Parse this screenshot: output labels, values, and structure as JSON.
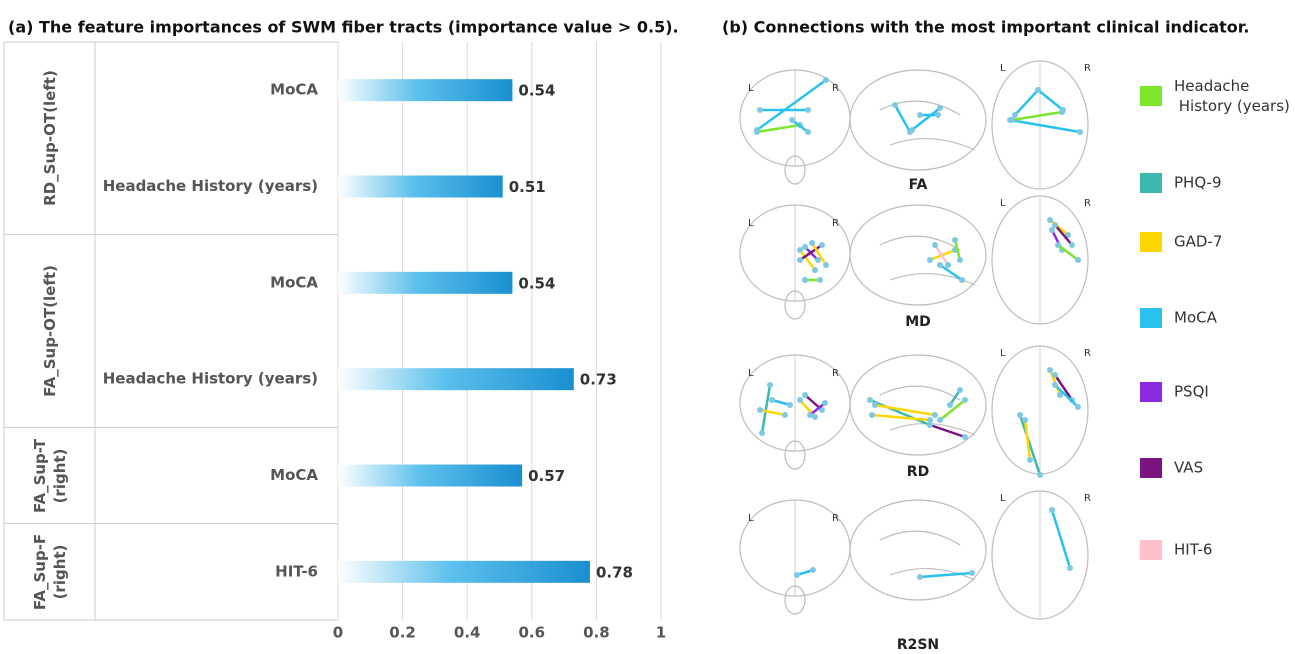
{
  "chart_data": {
    "type": "hbar",
    "title": "(a)  The feature importances of SWM fiber tracts (importance value > 0.5).",
    "groups": [
      {
        "name": "RD_Sup-OT(left)",
        "categories": [
          "MoCA",
          "Headache History (years)"
        ],
        "values": [
          0.54,
          0.51
        ]
      },
      {
        "name": "FA_Sup-OT(left)",
        "categories": [
          "MoCA",
          "Headache History (years)"
        ],
        "values": [
          0.54,
          0.73
        ]
      },
      {
        "name": "FA_Sup-T(right)",
        "categories": [
          "MoCA"
        ],
        "values": [
          0.57
        ]
      },
      {
        "name": "FA_Sup-F(right)",
        "categories": [
          "HIT-6"
        ],
        "values": [
          0.78
        ]
      }
    ],
    "color": "#1a8fd0",
    "xlim": [
      0,
      1
    ],
    "xticks": [
      0,
      0.2,
      0.4,
      0.6,
      0.8,
      1
    ],
    "grid": true
  },
  "panel_b": {
    "title": "(b) Connections with the most important clinical indicator.",
    "orientation_labels": [
      "L",
      "R"
    ],
    "views": [
      "FA",
      "MD",
      "RD",
      "R2SN"
    ],
    "legend": [
      {
        "name": "Headache History (years)",
        "color": "#7de62a"
      },
      {
        "name": "PHQ-9",
        "color": "#3cb8b0"
      },
      {
        "name": "GAD-7",
        "color": "#ffd700"
      },
      {
        "name": "MoCA",
        "color": "#29c1f0"
      },
      {
        "name": "PSQI",
        "color": "#8a2be2"
      },
      {
        "name": "VAS",
        "color": "#7b1480"
      },
      {
        "name": "HIT-6",
        "color": "#ffc0cb"
      }
    ]
  }
}
